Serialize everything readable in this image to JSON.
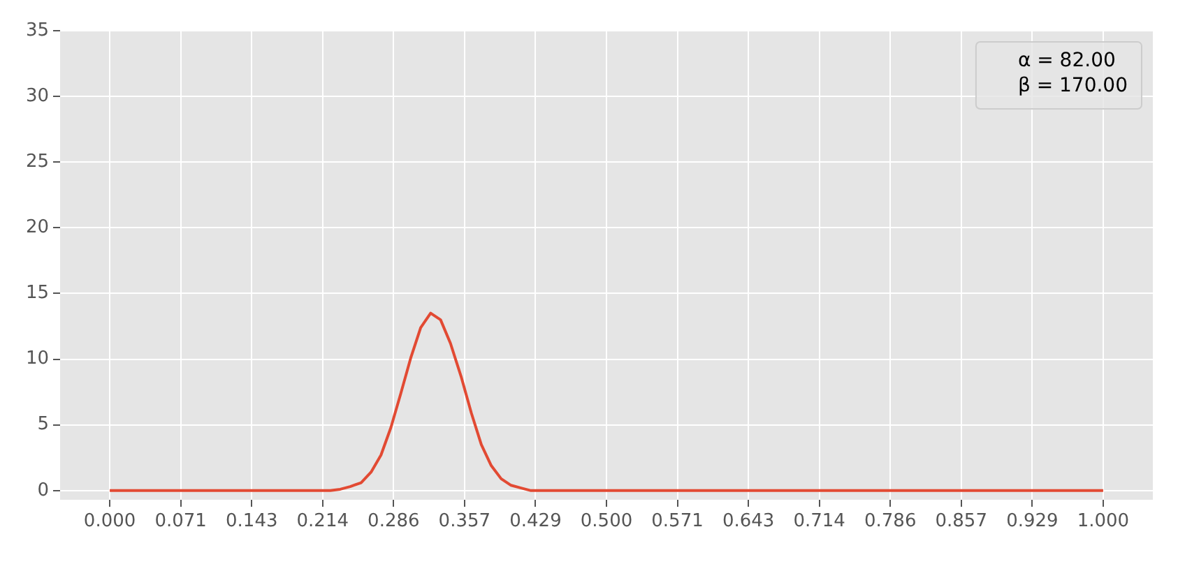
{
  "chart_data": {
    "type": "line",
    "x": [
      0,
      0.2,
      0.222,
      0.232,
      0.242,
      0.253,
      0.263,
      0.273,
      0.283,
      0.293,
      0.303,
      0.313,
      0.323,
      0.333,
      0.343,
      0.354,
      0.364,
      0.374,
      0.384,
      0.394,
      0.404,
      0.414,
      0.424,
      0.45,
      1
    ],
    "series": [
      {
        "name": "α = 82.00\nβ = 170.00",
        "color": "#e24a33",
        "values": [
          0,
          0,
          0,
          0.1,
          0.3,
          0.6,
          1.4,
          2.7,
          4.8,
          7.4,
          10.1,
          12.4,
          13.5,
          13,
          11.2,
          8.6,
          5.9,
          3.5,
          1.9,
          0.9,
          0.4,
          0.2,
          0,
          0,
          0
        ]
      }
    ],
    "xlim": [
      -0.05,
      1.05
    ],
    "xticks": [
      {
        "value": 0,
        "label": "0.000"
      },
      {
        "value": 0.0714,
        "label": "0.071"
      },
      {
        "value": 0.1429,
        "label": "0.143"
      },
      {
        "value": 0.2143,
        "label": "0.214"
      },
      {
        "value": 0.2857,
        "label": "0.286"
      },
      {
        "value": 0.3571,
        "label": "0.357"
      },
      {
        "value": 0.4286,
        "label": "0.429"
      },
      {
        "value": 0.5,
        "label": "0.500"
      },
      {
        "value": 0.5714,
        "label": "0.571"
      },
      {
        "value": 0.6429,
        "label": "0.643"
      },
      {
        "value": 0.7143,
        "label": "0.714"
      },
      {
        "value": 0.7857,
        "label": "0.786"
      },
      {
        "value": 0.8571,
        "label": "0.857"
      },
      {
        "value": 0.9286,
        "label": "0.929"
      },
      {
        "value": 1,
        "label": "1.000"
      }
    ],
    "ylim": [
      -0.7,
      35
    ],
    "yticks": [
      0,
      5,
      10,
      15,
      20,
      25,
      30,
      35
    ],
    "grid": true,
    "legend": "top right",
    "marker": "none",
    "line_style": "solid"
  }
}
